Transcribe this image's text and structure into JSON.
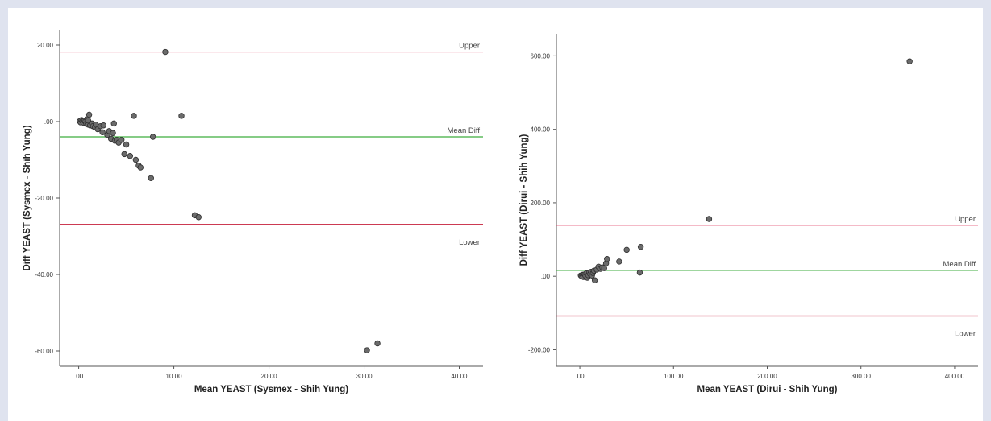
{
  "chart_data": [
    {
      "type": "scatter",
      "title": "",
      "xlabel": "Mean YEAST (Sysmex - Shih Yung)",
      "ylabel": "Diff YEAST (Sysmex - Shih Yung)",
      "xlim": [
        -2,
        42.5
      ],
      "ylim": [
        -64,
        24
      ],
      "x_ticks": [
        0,
        10,
        20,
        30,
        40
      ],
      "x_tick_labels": [
        ".00",
        "10.00",
        "20.00",
        "30.00",
        "40.00"
      ],
      "y_ticks": [
        20,
        0,
        -20,
        -40,
        -60
      ],
      "y_tick_labels": [
        "20.00",
        ".00",
        "-20.00",
        "-40.00",
        "-60.00"
      ],
      "reference_lines": [
        {
          "label": "Upper",
          "y": 18.2,
          "color": "#e0486a"
        },
        {
          "label": "Mean Diff",
          "y": -4.0,
          "color": "#3fae3f"
        },
        {
          "label": "Lower",
          "y": -26.9,
          "color": "#c41e3a"
        }
      ],
      "points": [
        [
          0.1,
          0.1
        ],
        [
          0.2,
          -0.2
        ],
        [
          0.3,
          0.4
        ],
        [
          0.4,
          0.1
        ],
        [
          0.5,
          -0.3
        ],
        [
          0.6,
          0.2
        ],
        [
          0.7,
          0.0
        ],
        [
          0.8,
          -0.5
        ],
        [
          0.9,
          0.6
        ],
        [
          1.0,
          -0.8
        ],
        [
          1.1,
          1.8
        ],
        [
          1.0,
          0.3
        ],
        [
          1.2,
          -1.0
        ],
        [
          1.4,
          -0.5
        ],
        [
          1.5,
          -1.2
        ],
        [
          1.7,
          -1.5
        ],
        [
          1.8,
          -0.8
        ],
        [
          2.0,
          -2.0
        ],
        [
          2.3,
          -1.2
        ],
        [
          2.5,
          -2.8
        ],
        [
          2.6,
          -1.0
        ],
        [
          3.0,
          -3.5
        ],
        [
          3.2,
          -2.5
        ],
        [
          3.4,
          -4.5
        ],
        [
          3.6,
          -3.0
        ],
        [
          3.8,
          -5.0
        ],
        [
          3.7,
          -0.5
        ],
        [
          4.0,
          -4.8
        ],
        [
          4.2,
          -5.5
        ],
        [
          4.5,
          -4.8
        ],
        [
          4.8,
          -8.5
        ],
        [
          5.0,
          -6.0
        ],
        [
          5.4,
          -9.0
        ],
        [
          5.8,
          1.5
        ],
        [
          6.0,
          -10.0
        ],
        [
          6.3,
          -11.5
        ],
        [
          6.5,
          -12.0
        ],
        [
          7.6,
          -14.8
        ],
        [
          7.8,
          -4.0
        ],
        [
          9.1,
          18.2
        ],
        [
          10.8,
          1.5
        ],
        [
          12.2,
          -24.5
        ],
        [
          12.6,
          -25.0
        ],
        [
          30.3,
          -59.8
        ],
        [
          31.4,
          -58.0
        ]
      ]
    },
    {
      "type": "scatter",
      "title": "",
      "xlabel": "Mean YEAST (Dirui - Shih Yung)",
      "ylabel": "Diff YEAST (Dirui - Shih Yung)",
      "xlim": [
        -25,
        425
      ],
      "ylim": [
        -245,
        660
      ],
      "x_ticks": [
        0,
        100,
        200,
        300,
        400
      ],
      "x_tick_labels": [
        ".00",
        "100.00",
        "200.00",
        "300.00",
        "400.00"
      ],
      "y_ticks": [
        600,
        400,
        200,
        0,
        -200
      ],
      "y_tick_labels": [
        "600.00",
        "400.00",
        "200.00",
        ".00",
        "-200.00"
      ],
      "reference_lines": [
        {
          "label": "Upper",
          "y": 139,
          "color": "#e0486a"
        },
        {
          "label": "Mean Diff",
          "y": 16,
          "color": "#3fae3f"
        },
        {
          "label": "Lower",
          "y": -108,
          "color": "#c41e3a"
        }
      ],
      "points": [
        [
          1,
          2
        ],
        [
          2,
          0
        ],
        [
          3,
          4
        ],
        [
          4,
          -2
        ],
        [
          5,
          5
        ],
        [
          6,
          1
        ],
        [
          7,
          8
        ],
        [
          8,
          -4
        ],
        [
          9,
          3
        ],
        [
          10,
          10
        ],
        [
          11,
          6
        ],
        [
          12,
          12
        ],
        [
          13,
          2
        ],
        [
          14,
          9
        ],
        [
          15,
          15
        ],
        [
          16,
          -11
        ],
        [
          18,
          18
        ],
        [
          20,
          26
        ],
        [
          22,
          20
        ],
        [
          24,
          24
        ],
        [
          26,
          22
        ],
        [
          28,
          35
        ],
        [
          29,
          47
        ],
        [
          42,
          40
        ],
        [
          50,
          72
        ],
        [
          64,
          10
        ],
        [
          65,
          80
        ],
        [
          138,
          156
        ],
        [
          352,
          585
        ]
      ]
    }
  ]
}
